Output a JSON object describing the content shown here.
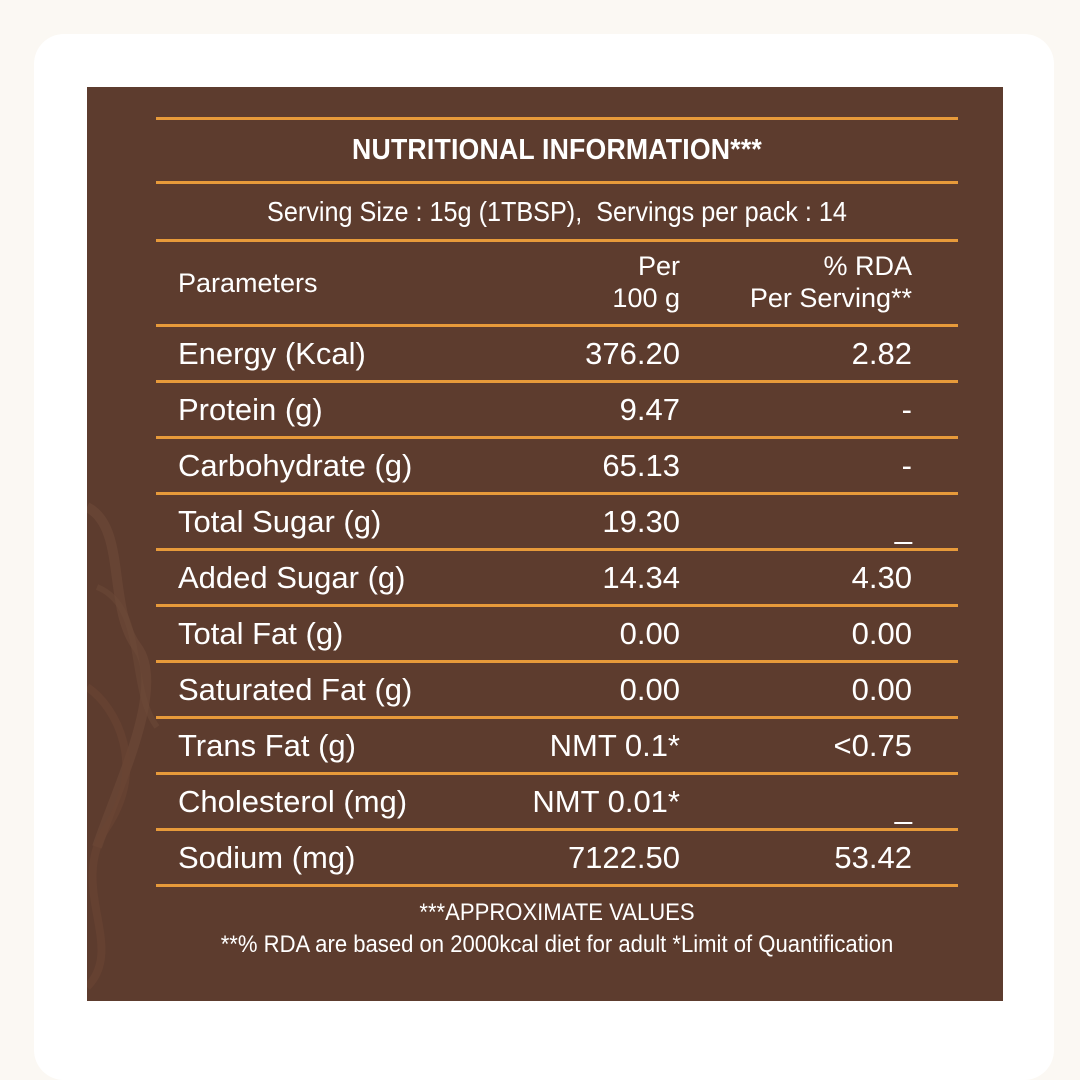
{
  "label": {
    "title": "NUTRITIONAL INFORMATION***",
    "serving": "Serving Size : 15g (1TBSP),  Servings per pack : 14",
    "headers": {
      "parameters": "Parameters",
      "per_100g": "Per\n100 g",
      "rda": "% RDA\nPer Serving**"
    },
    "rows": [
      {
        "param": "Energy (Kcal)",
        "per": "376.20",
        "rda": "2.82"
      },
      {
        "param": "Protein (g)",
        "per": "9.47",
        "rda": "-"
      },
      {
        "param": "Carbohydrate (g)",
        "per": "65.13",
        "rda": "-"
      },
      {
        "param": "Total Sugar (g)",
        "per": "19.30",
        "rda": "_"
      },
      {
        "param": "Added Sugar (g)",
        "per": "14.34",
        "rda": "4.30"
      },
      {
        "param": "Total Fat (g)",
        "per": "0.00",
        "rda": "0.00"
      },
      {
        "param": "Saturated Fat (g)",
        "per": "0.00",
        "rda": "0.00"
      },
      {
        "param": "Trans Fat (g)",
        "per": "NMT 0.1*",
        "rda": "<0.75"
      },
      {
        "param": "Cholesterol (mg)",
        "per": "NMT 0.01*",
        "rda": "_"
      },
      {
        "param": "Sodium (mg)",
        "per": "7122.50",
        "rda": "53.42"
      }
    ],
    "footnote_1": "***APPROXIMATE VALUES",
    "footnote_2": "**% RDA are based on 2000kcal diet for adult *Limit of Quantification"
  },
  "colors": {
    "panel": "#5d3c2e",
    "rule": "#e79a3a",
    "text": "#ffffff"
  }
}
